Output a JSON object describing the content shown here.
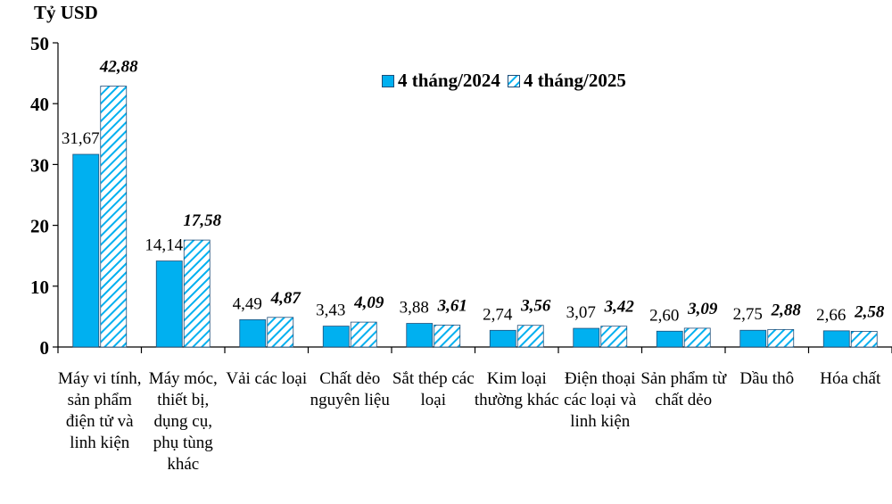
{
  "chart_data": {
    "type": "bar",
    "ylabel": "Tỷ USD",
    "ylim": [
      0,
      50
    ],
    "yticks": [
      "0",
      "10",
      "20",
      "30",
      "40",
      "50"
    ],
    "grid": false,
    "legend_position": "top-center",
    "categories": [
      "Máy vi tính, sản phẩm điện tử và linh kiện",
      "Máy móc, thiết bị, dụng cụ, phụ tùng khác",
      "Vải các loại",
      "Chất dẻo nguyên liệu",
      "Sắt thép các loại",
      "Kim loại thường khác",
      "Điện thoại các loại và linh kiện",
      "Sản phẩm từ chất dẻo",
      "Dầu thô",
      "Hóa chất"
    ],
    "series": [
      {
        "name": "4 tháng/2024",
        "color": "#00b0f0",
        "values": [
          31.67,
          14.14,
          4.49,
          3.43,
          3.88,
          2.74,
          3.07,
          2.6,
          2.75,
          2.66
        ],
        "labels": [
          "31,67",
          "14,14",
          "4,49",
          "3,43",
          "3,88",
          "2,74",
          "3,07",
          "2,60",
          "2,75",
          "2,66"
        ]
      },
      {
        "name": "4 tháng/2025",
        "color": "#00b0f0",
        "pattern": "diagonal-hatch",
        "values": [
          42.88,
          17.58,
          4.87,
          4.09,
          3.61,
          3.56,
          3.42,
          3.09,
          2.88,
          2.58
        ],
        "labels": [
          "42,88",
          "17,58",
          "4,87",
          "4,09",
          "3,61",
          "3,56",
          "3,42",
          "3,09",
          "2,88",
          "2,58"
        ]
      }
    ]
  }
}
